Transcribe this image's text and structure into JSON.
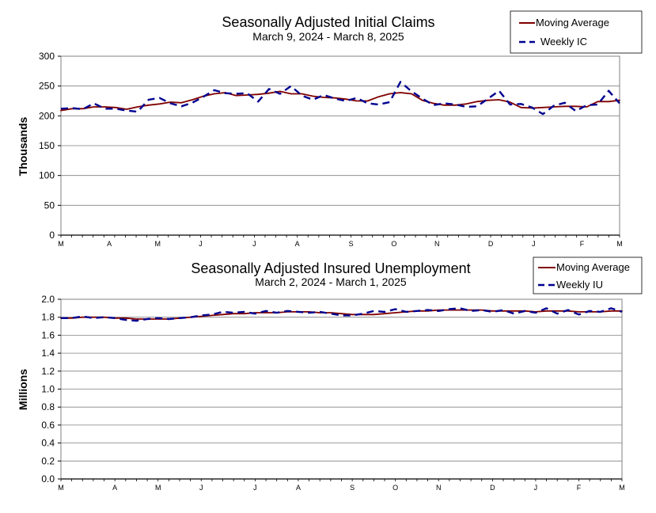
{
  "chart_data": [
    {
      "type": "line",
      "title": "Seasonally Adjusted Initial Claims",
      "subtitle": "March 9, 2024 - March 8, 2025",
      "ylabel": "Thousands",
      "xlabel": "",
      "ylim": [
        0,
        300
      ],
      "yticks": [
        "0",
        "50",
        "100",
        "150",
        "200",
        "250",
        "300"
      ],
      "ytick_values": [
        0,
        50,
        100,
        150,
        200,
        250,
        300
      ],
      "month_labels": [
        {
          "label": "M",
          "week": 0
        },
        {
          "label": "A",
          "week": 4.5
        },
        {
          "label": "M",
          "week": 9
        },
        {
          "label": "J",
          "week": 13
        },
        {
          "label": "J",
          "week": 18
        },
        {
          "label": "A",
          "week": 22
        },
        {
          "label": "S",
          "week": 27
        },
        {
          "label": "O",
          "week": 31
        },
        {
          "label": "N",
          "week": 35
        },
        {
          "label": "D",
          "week": 40
        },
        {
          "label": "J",
          "week": 44
        },
        {
          "label": "F",
          "week": 48.5
        },
        {
          "label": "M",
          "week": 52
        }
      ],
      "grid": true,
      "legend_position": "top-right",
      "series": [
        {
          "name": "Moving Average",
          "color": "#800000",
          "style": "solid",
          "values": [
            209,
            212,
            212,
            215,
            215,
            214,
            211,
            215,
            218,
            220,
            223,
            222,
            227,
            233,
            237,
            239,
            234,
            235,
            236,
            238,
            241,
            237,
            237,
            233,
            231,
            230,
            228,
            225,
            225,
            232,
            237,
            239,
            237,
            226,
            221,
            218,
            218,
            220,
            224,
            226,
            227,
            223,
            214,
            213,
            214,
            215,
            216,
            216,
            215,
            224,
            224,
            226
          ]
        },
        {
          "name": "Weekly IC",
          "color": "#000090",
          "style": "dashed",
          "values": [
            212,
            213,
            211,
            221,
            212,
            212,
            209,
            207,
            227,
            230,
            221,
            216,
            222,
            232,
            243,
            238,
            237,
            238,
            224,
            245,
            237,
            250,
            234,
            227,
            235,
            229,
            225,
            230,
            221,
            219,
            223,
            257,
            241,
            229,
            218,
            221,
            219,
            215,
            216,
            229,
            242,
            219,
            220,
            214,
            203,
            217,
            222,
            208,
            218,
            219,
            242,
            221
          ]
        }
      ]
    },
    {
      "type": "line",
      "title": "Seasonally Adjusted Insured Unemployment",
      "subtitle": "March 2, 2024 - March 1, 2025",
      "ylabel": "Millions",
      "xlabel": "",
      "ylim": [
        0,
        2.0
      ],
      "yticks": [
        "0.0",
        "0.2",
        "0.4",
        "0.6",
        "0.8",
        "1.0",
        "1.2",
        "1.4",
        "1.6",
        "1.8",
        "2.0"
      ],
      "ytick_values": [
        0.0,
        0.2,
        0.4,
        0.6,
        0.8,
        1.0,
        1.2,
        1.4,
        1.6,
        1.8,
        2.0
      ],
      "month_labels": [
        {
          "label": "M",
          "week": 0
        },
        {
          "label": "A",
          "week": 5
        },
        {
          "label": "M",
          "week": 9
        },
        {
          "label": "J",
          "week": 13
        },
        {
          "label": "J",
          "week": 18
        },
        {
          "label": "A",
          "week": 22
        },
        {
          "label": "S",
          "week": 27
        },
        {
          "label": "O",
          "week": 31
        },
        {
          "label": "N",
          "week": 35
        },
        {
          "label": "D",
          "week": 40
        },
        {
          "label": "J",
          "week": 44
        },
        {
          "label": "F",
          "week": 48
        },
        {
          "label": "M",
          "week": 52
        }
      ],
      "grid": true,
      "legend_position": "top-right",
      "series": [
        {
          "name": "Moving Average",
          "color": "#800000",
          "style": "solid",
          "values": [
            1.79,
            1.79,
            1.8,
            1.8,
            1.8,
            1.79,
            1.79,
            1.78,
            1.78,
            1.78,
            1.78,
            1.79,
            1.8,
            1.81,
            1.82,
            1.83,
            1.84,
            1.84,
            1.85,
            1.85,
            1.85,
            1.86,
            1.86,
            1.86,
            1.85,
            1.85,
            1.84,
            1.83,
            1.83,
            1.83,
            1.84,
            1.85,
            1.86,
            1.87,
            1.87,
            1.88,
            1.88,
            1.88,
            1.88,
            1.88,
            1.87,
            1.87,
            1.87,
            1.87,
            1.86,
            1.87,
            1.87,
            1.87,
            1.86,
            1.86,
            1.86,
            1.87,
            1.87
          ]
        },
        {
          "name": "Weekly IU",
          "color": "#000090",
          "style": "dashed",
          "values": [
            1.79,
            1.79,
            1.81,
            1.79,
            1.8,
            1.79,
            1.77,
            1.76,
            1.78,
            1.79,
            1.78,
            1.79,
            1.8,
            1.82,
            1.83,
            1.86,
            1.85,
            1.86,
            1.84,
            1.87,
            1.85,
            1.87,
            1.86,
            1.85,
            1.86,
            1.84,
            1.82,
            1.82,
            1.84,
            1.87,
            1.86,
            1.89,
            1.86,
            1.87,
            1.88,
            1.87,
            1.89,
            1.9,
            1.87,
            1.88,
            1.86,
            1.88,
            1.84,
            1.87,
            1.85,
            1.9,
            1.84,
            1.88,
            1.83,
            1.87,
            1.86,
            1.9,
            1.86
          ]
        }
      ]
    }
  ]
}
